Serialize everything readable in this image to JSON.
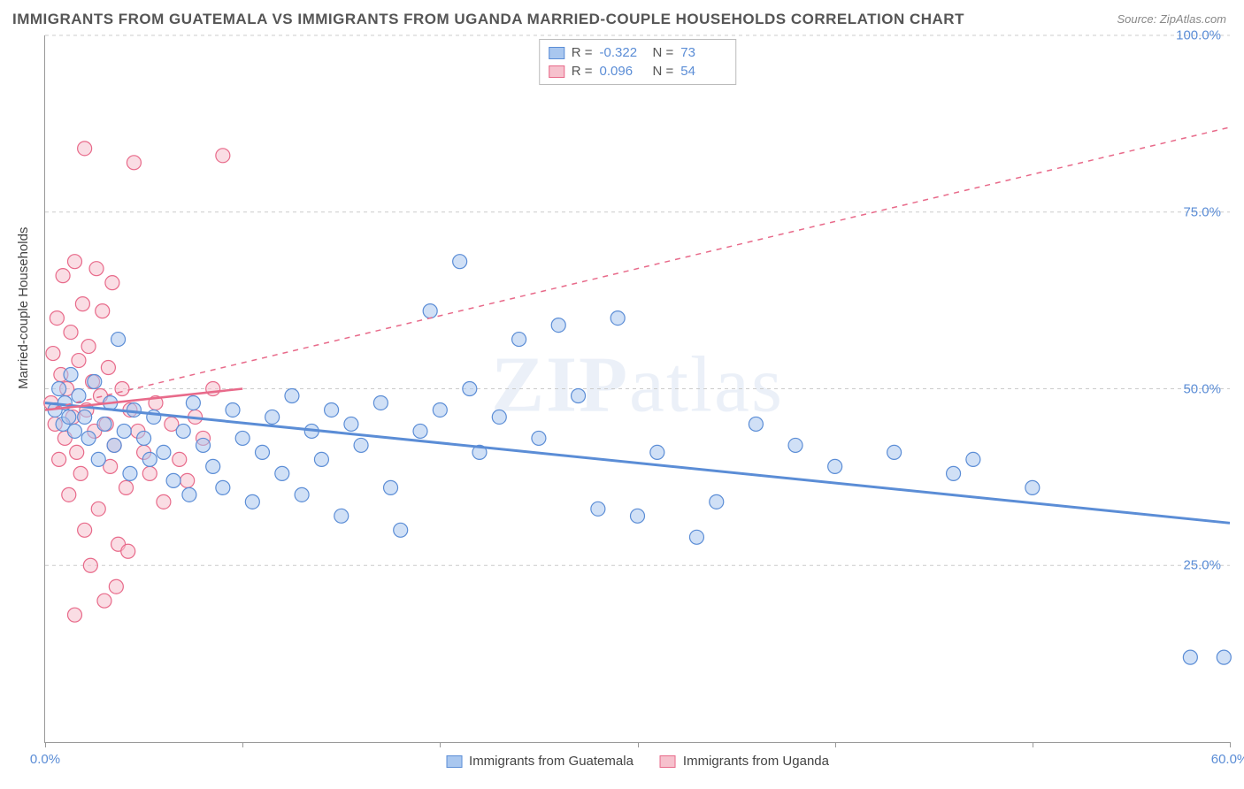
{
  "title": "IMMIGRANTS FROM GUATEMALA VS IMMIGRANTS FROM UGANDA MARRIED-COUPLE HOUSEHOLDS CORRELATION CHART",
  "source_label": "Source: ZipAtlas.com",
  "y_axis_label": "Married-couple Households",
  "watermark_bold": "ZIP",
  "watermark_rest": "atlas",
  "chart": {
    "type": "scatter",
    "xlim": [
      0,
      60
    ],
    "ylim": [
      0,
      100
    ],
    "x_ticks": [
      0,
      10,
      20,
      30,
      40,
      50,
      60
    ],
    "x_tick_labels": [
      "0.0%",
      "",
      "",
      "",
      "",
      "",
      "60.0%"
    ],
    "y_ticks": [
      25,
      50,
      75,
      100
    ],
    "y_tick_labels": [
      "25.0%",
      "50.0%",
      "75.0%",
      "100.0%"
    ],
    "grid_color": "#cccccc",
    "background_color": "#ffffff",
    "marker_radius": 8,
    "marker_opacity": 0.55,
    "series": [
      {
        "name": "Immigrants from Guatemala",
        "fill_color": "#a9c7ef",
        "stroke_color": "#5b8dd6",
        "r_value": "-0.322",
        "n_value": "73",
        "trend": {
          "x1": 0,
          "y1": 48,
          "x2": 60,
          "y2": 31,
          "solid": true,
          "width": 3
        },
        "points": [
          [
            0.5,
            47
          ],
          [
            0.7,
            50
          ],
          [
            0.9,
            45
          ],
          [
            1.0,
            48
          ],
          [
            1.2,
            46
          ],
          [
            1.3,
            52
          ],
          [
            1.5,
            44
          ],
          [
            1.7,
            49
          ],
          [
            2.0,
            46
          ],
          [
            2.2,
            43
          ],
          [
            2.5,
            51
          ],
          [
            2.7,
            40
          ],
          [
            3.0,
            45
          ],
          [
            3.3,
            48
          ],
          [
            3.5,
            42
          ],
          [
            3.7,
            57
          ],
          [
            4.0,
            44
          ],
          [
            4.3,
            38
          ],
          [
            4.5,
            47
          ],
          [
            5.0,
            43
          ],
          [
            5.3,
            40
          ],
          [
            5.5,
            46
          ],
          [
            6.0,
            41
          ],
          [
            6.5,
            37
          ],
          [
            7.0,
            44
          ],
          [
            7.3,
            35
          ],
          [
            7.5,
            48
          ],
          [
            8.0,
            42
          ],
          [
            8.5,
            39
          ],
          [
            9.0,
            36
          ],
          [
            9.5,
            47
          ],
          [
            10.0,
            43
          ],
          [
            10.5,
            34
          ],
          [
            11.0,
            41
          ],
          [
            11.5,
            46
          ],
          [
            12.0,
            38
          ],
          [
            12.5,
            49
          ],
          [
            13.0,
            35
          ],
          [
            13.5,
            44
          ],
          [
            14.0,
            40
          ],
          [
            14.5,
            47
          ],
          [
            15.0,
            32
          ],
          [
            15.5,
            45
          ],
          [
            16.0,
            42
          ],
          [
            17.0,
            48
          ],
          [
            17.5,
            36
          ],
          [
            18.0,
            30
          ],
          [
            19.0,
            44
          ],
          [
            19.5,
            61
          ],
          [
            20.0,
            47
          ],
          [
            21.0,
            68
          ],
          [
            21.5,
            50
          ],
          [
            22.0,
            41
          ],
          [
            23.0,
            46
          ],
          [
            24.0,
            57
          ],
          [
            25.0,
            43
          ],
          [
            26.0,
            59
          ],
          [
            27.0,
            49
          ],
          [
            28.0,
            33
          ],
          [
            29.0,
            60
          ],
          [
            30.0,
            32
          ],
          [
            31.0,
            41
          ],
          [
            33.0,
            29
          ],
          [
            34.0,
            34
          ],
          [
            36.0,
            45
          ],
          [
            38.0,
            42
          ],
          [
            40.0,
            39
          ],
          [
            43.0,
            41
          ],
          [
            46.0,
            38
          ],
          [
            47.0,
            40
          ],
          [
            50.0,
            36
          ],
          [
            58.0,
            12
          ],
          [
            59.7,
            12
          ]
        ]
      },
      {
        "name": "Immigrants from Uganda",
        "fill_color": "#f6c1cd",
        "stroke_color": "#e86a8a",
        "r_value": "0.096",
        "n_value": "54",
        "trend_solid": {
          "x1": 0,
          "y1": 47,
          "x2": 10,
          "y2": 50,
          "width": 2.5
        },
        "trend_dashed": {
          "x1": 0,
          "y1": 47,
          "x2": 60,
          "y2": 87,
          "width": 1.5
        },
        "points": [
          [
            0.3,
            48
          ],
          [
            0.4,
            55
          ],
          [
            0.5,
            45
          ],
          [
            0.6,
            60
          ],
          [
            0.7,
            40
          ],
          [
            0.8,
            52
          ],
          [
            0.9,
            66
          ],
          [
            1.0,
            43
          ],
          [
            1.1,
            50
          ],
          [
            1.2,
            35
          ],
          [
            1.3,
            58
          ],
          [
            1.4,
            46
          ],
          [
            1.5,
            68
          ],
          [
            1.6,
            41
          ],
          [
            1.7,
            54
          ],
          [
            1.8,
            38
          ],
          [
            1.9,
            62
          ],
          [
            2.0,
            30
          ],
          [
            2.1,
            47
          ],
          [
            2.2,
            56
          ],
          [
            2.3,
            25
          ],
          [
            2.4,
            51
          ],
          [
            2.5,
            44
          ],
          [
            2.6,
            67
          ],
          [
            2.7,
            33
          ],
          [
            2.8,
            49
          ],
          [
            2.9,
            61
          ],
          [
            3.0,
            20
          ],
          [
            3.1,
            45
          ],
          [
            3.2,
            53
          ],
          [
            3.3,
            39
          ],
          [
            3.4,
            65
          ],
          [
            3.5,
            42
          ],
          [
            3.7,
            28
          ],
          [
            3.9,
            50
          ],
          [
            4.1,
            36
          ],
          [
            4.3,
            47
          ],
          [
            4.5,
            82
          ],
          [
            4.7,
            44
          ],
          [
            5.0,
            41
          ],
          [
            5.3,
            38
          ],
          [
            5.6,
            48
          ],
          [
            6.0,
            34
          ],
          [
            6.4,
            45
          ],
          [
            6.8,
            40
          ],
          [
            7.2,
            37
          ],
          [
            7.6,
            46
          ],
          [
            8.0,
            43
          ],
          [
            8.5,
            50
          ],
          [
            9.0,
            83
          ],
          [
            1.5,
            18
          ],
          [
            2.0,
            84
          ],
          [
            3.6,
            22
          ],
          [
            4.2,
            27
          ]
        ]
      }
    ]
  },
  "stats_labels": {
    "r": "R =",
    "n": "N ="
  }
}
